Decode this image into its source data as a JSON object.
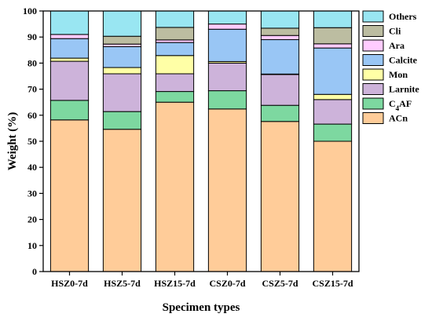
{
  "chart_data": {
    "type": "bar",
    "stacked": true,
    "xlabel": "Specimen types",
    "ylabel": "Weight (%)",
    "ylim": [
      0,
      100
    ],
    "yticks": [
      0,
      10,
      20,
      30,
      40,
      50,
      60,
      70,
      80,
      90,
      100
    ],
    "grid": false,
    "legend_position": "right",
    "categories": [
      "HSZ0-7d",
      "HSZ5-7d",
      "HSZ15-7d",
      "CSZ0-7d",
      "CSZ5-7d",
      "CSZ15-7d"
    ],
    "series": [
      {
        "name": "ACn",
        "color": "#FFCC99",
        "values": [
          58.2,
          54.6,
          65.0,
          62.4,
          57.6,
          50.0
        ]
      },
      {
        "name": "C4AF",
        "color": "#7DD8A0",
        "values": [
          7.5,
          6.8,
          4.1,
          7.0,
          6.2,
          6.6
        ]
      },
      {
        "name": "Larnite",
        "color": "#CDB3DA",
        "values": [
          15.0,
          14.5,
          6.8,
          10.6,
          11.8,
          9.4
        ]
      },
      {
        "name": "Mon",
        "color": "#FFFFA6",
        "values": [
          1.2,
          2.4,
          7.0,
          0.6,
          0.2,
          2.0
        ]
      },
      {
        "name": "Calcite",
        "color": "#99C6F5",
        "values": [
          7.5,
          8.0,
          5.0,
          12.4,
          13.2,
          17.8
        ]
      },
      {
        "name": "Ara",
        "color": "#FFCCFF",
        "values": [
          1.6,
          1.0,
          1.0,
          2.0,
          1.6,
          1.6
        ]
      },
      {
        "name": "Cli",
        "color": "#BCBDA1",
        "values": [
          0.0,
          3.0,
          4.8,
          0.0,
          2.8,
          6.2
        ]
      },
      {
        "name": "Others",
        "color": "#99E6F2",
        "values": [
          9.0,
          9.7,
          6.3,
          5.0,
          6.6,
          6.4
        ]
      }
    ],
    "legend_order": [
      "Others",
      "Cli",
      "Ara",
      "Calcite",
      "Mon",
      "Larnite",
      "C4AF",
      "ACn"
    ]
  }
}
